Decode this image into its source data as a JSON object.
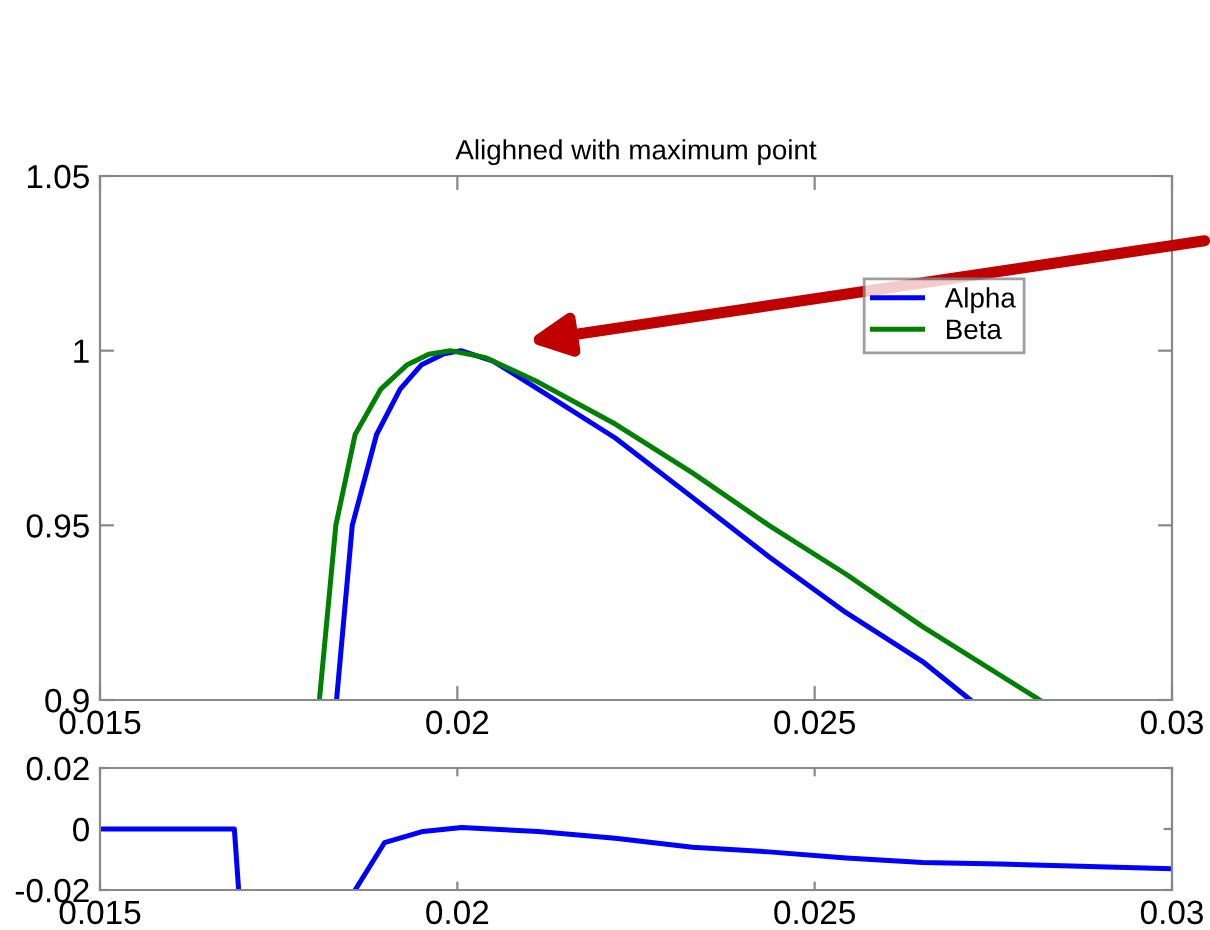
{
  "chart_data": [
    {
      "type": "line",
      "title": "Alighned with maximum point",
      "xlim": [
        0.015,
        0.03
      ],
      "xticks": [
        0.015,
        0.02,
        0.025,
        0.03
      ],
      "ylim": [
        0.9,
        1.05
      ],
      "yticks": [
        0.9,
        0.95,
        1,
        1.05
      ],
      "grid": false,
      "legend": "top right",
      "marker": "none",
      "line_style": "solid",
      "series": [
        {
          "name": "Alpha",
          "color": "#0000ff",
          "x": [
            0.01831,
            0.01853,
            0.01887,
            0.0192,
            0.0195,
            0.0198,
            0.02005,
            0.0205,
            0.02113,
            0.02221,
            0.02329,
            0.02436,
            0.02544,
            0.02651,
            0.02718
          ],
          "values": [
            0.9,
            0.95,
            0.976,
            0.989,
            0.996,
            0.999,
            1.0,
            0.997,
            0.989,
            0.975,
            0.958,
            0.941,
            0.925,
            0.911,
            0.9
          ]
        },
        {
          "name": "Beta",
          "color": "#008000",
          "x": [
            0.01807,
            0.0183,
            0.01857,
            0.01893,
            0.0193,
            0.0196,
            0.0199,
            0.0204,
            0.02113,
            0.02221,
            0.02329,
            0.02436,
            0.02544,
            0.02651,
            0.02815
          ],
          "values": [
            0.9,
            0.95,
            0.976,
            0.989,
            0.996,
            0.999,
            1.0,
            0.998,
            0.991,
            0.979,
            0.965,
            0.95,
            0.936,
            0.921,
            0.9
          ]
        }
      ]
    },
    {
      "type": "line",
      "xlim": [
        0.015,
        0.03
      ],
      "xticks": [
        0.015,
        0.02,
        0.025,
        0.03
      ],
      "ylim": [
        -0.02,
        0.02
      ],
      "yticks": [
        -0.02,
        0,
        0.02
      ],
      "grid": false,
      "marker": "none",
      "line_style": "solid",
      "series": [
        {
          "color": "#0000ff",
          "x": [
            0.015,
            0.016,
            0.01688,
            0.01694,
            0.0175,
            0.01857,
            0.01898,
            0.01952,
            0.02006,
            0.02113,
            0.02221,
            0.02329,
            0.02436,
            0.02544,
            0.02651,
            0.02759,
            0.03
          ],
          "values": [
            0,
            0,
            0,
            -0.02,
            null,
            -0.02,
            -0.0045,
            -0.0008,
            0.0005,
            -0.0008,
            -0.003,
            -0.006,
            -0.0075,
            -0.0095,
            -0.011,
            -0.0115,
            -0.013
          ]
        }
      ]
    }
  ]
}
